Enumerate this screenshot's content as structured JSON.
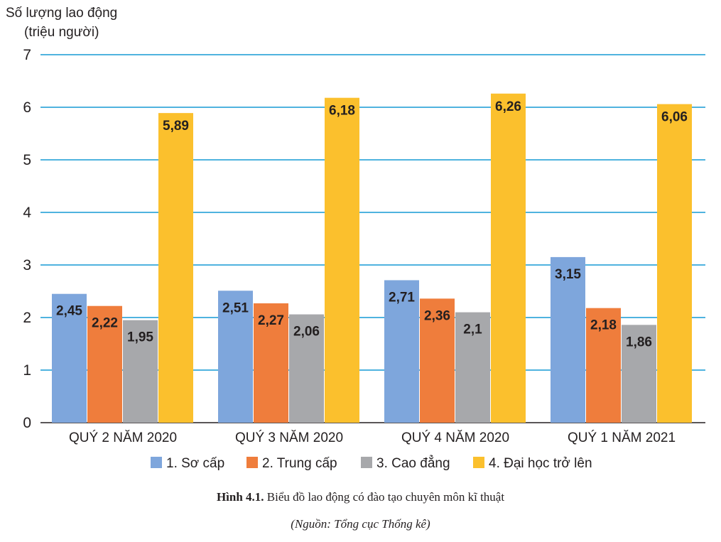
{
  "chart_data": {
    "type": "bar",
    "ylabel_line1": "Số lượng lao động",
    "ylabel_line2": "(triệu người)",
    "ylim": [
      0,
      7
    ],
    "yticks": [
      "0",
      "1",
      "2",
      "3",
      "4",
      "5",
      "6",
      "7"
    ],
    "grid": true,
    "legend_position": "bottom",
    "categories": [
      "QUÝ 2 NĂM 2020",
      "QUÝ 3 NĂM 2020",
      "QUÝ 4 NĂM 2020",
      "QUÝ 1 NĂM 2021"
    ],
    "series": [
      {
        "name": "1. Sơ cấp",
        "color": "#7ea6dc",
        "values": [
          2.45,
          2.51,
          2.71,
          3.15
        ],
        "labels": [
          "2,45",
          "2,51",
          "2,71",
          "3,15"
        ]
      },
      {
        "name": "2. Trung cấp",
        "color": "#ef7d3c",
        "values": [
          2.22,
          2.27,
          2.36,
          2.18
        ],
        "labels": [
          "2,22",
          "2,27",
          "2,36",
          "2,18"
        ]
      },
      {
        "name": "3. Cao đẳng",
        "color": "#a7a8ab",
        "values": [
          1.95,
          2.06,
          2.1,
          1.86
        ],
        "labels": [
          "1,95",
          "2,06",
          "2,1",
          "1,86"
        ]
      },
      {
        "name": "4. Đại học trở lên",
        "color": "#fbc02d",
        "values": [
          5.89,
          6.18,
          6.26,
          6.06
        ],
        "labels": [
          "5,89",
          "6,18",
          "6,26",
          "6,06"
        ]
      }
    ],
    "grid_color": "#4fb3df"
  },
  "caption": {
    "label": "Hình 4.1.",
    "text": " Biểu đồ lao động có đào tạo chuyên môn kĩ thuật",
    "source": "(Nguồn: Tổng cục Thống kê)"
  }
}
